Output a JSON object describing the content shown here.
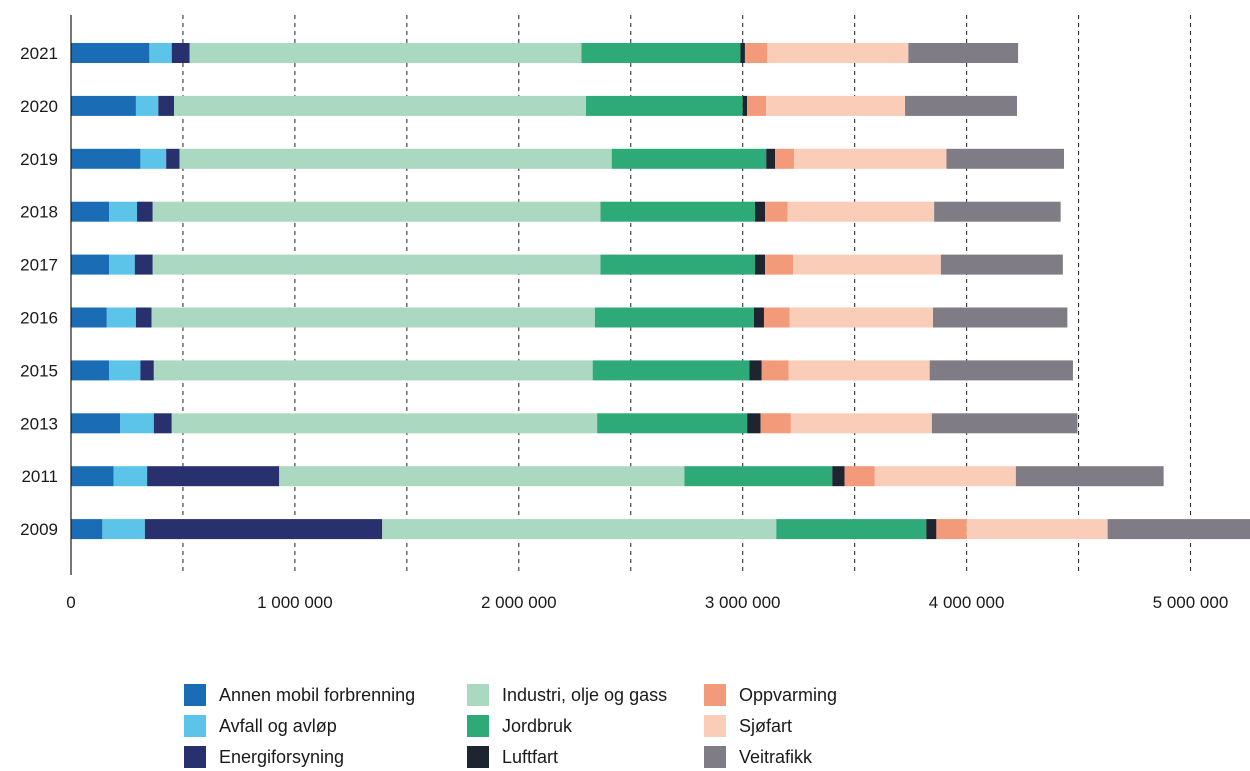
{
  "chart_data": {
    "type": "bar",
    "orientation": "horizontal",
    "stacked": true,
    "categories": [
      "2021",
      "2020",
      "2019",
      "2018",
      "2017",
      "2016",
      "2015",
      "2013",
      "2011",
      "2009"
    ],
    "xlim": [
      0,
      5250000
    ],
    "xticks": [
      0,
      1000000,
      2000000,
      3000000,
      4000000,
      5000000
    ],
    "xtick_labels": [
      "0",
      "1 000 000",
      "2 000 000",
      "3 000 000",
      "4 000 000",
      "5 000 000"
    ],
    "grid": "dashed vertical lines every 500 000",
    "legend_position": "bottom",
    "series": [
      {
        "name": "Annen mobil forbrenning",
        "color": "#1a6db5",
        "values": [
          350000,
          290000,
          310000,
          170000,
          170000,
          160000,
          170000,
          220000,
          190000,
          140000
        ]
      },
      {
        "name": "Avfall og avløp",
        "color": "#5bc4e8",
        "values": [
          100000,
          100000,
          115000,
          125000,
          115000,
          130000,
          140000,
          150000,
          150000,
          190000
        ]
      },
      {
        "name": "Energiforsyning",
        "color": "#28306e",
        "values": [
          80000,
          70000,
          60000,
          70000,
          80000,
          70000,
          60000,
          80000,
          590000,
          1060000
        ]
      },
      {
        "name": "Industri, olje og gass",
        "color": "#aad8c0",
        "values": [
          1750000,
          1840000,
          1930000,
          2000000,
          2000000,
          1980000,
          1960000,
          1900000,
          1810000,
          1760000
        ]
      },
      {
        "name": "Jordbruk",
        "color": "#2daa78",
        "values": [
          710000,
          700000,
          690000,
          690000,
          690000,
          710000,
          700000,
          670000,
          660000,
          670000
        ]
      },
      {
        "name": "Luftfart",
        "color": "#1e2530",
        "values": [
          20000,
          20000,
          40000,
          45000,
          45000,
          45000,
          55000,
          60000,
          55000,
          45000
        ]
      },
      {
        "name": "Oppvarming",
        "color": "#f29a7a",
        "values": [
          100000,
          85000,
          85000,
          100000,
          125000,
          115000,
          120000,
          135000,
          135000,
          135000
        ]
      },
      {
        "name": "Sjøfart",
        "color": "#f9cdb8",
        "values": [
          630000,
          620000,
          680000,
          655000,
          660000,
          640000,
          630000,
          630000,
          630000,
          630000
        ]
      },
      {
        "name": "Veitrafikk",
        "color": "#7f7c86",
        "values": [
          490000,
          500000,
          525000,
          565000,
          545000,
          600000,
          640000,
          650000,
          660000,
          700000
        ]
      }
    ]
  }
}
